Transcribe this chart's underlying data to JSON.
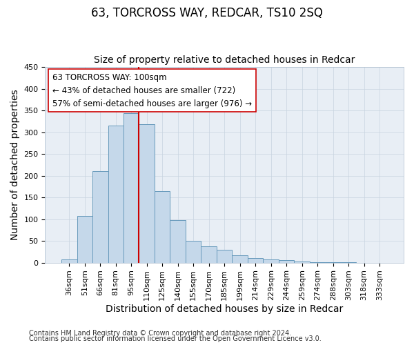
{
  "title": "63, TORCROSS WAY, REDCAR, TS10 2SQ",
  "subtitle": "Size of property relative to detached houses in Redcar",
  "xlabel": "Distribution of detached houses by size in Redcar",
  "ylabel": "Number of detached properties",
  "categories": [
    "36sqm",
    "51sqm",
    "66sqm",
    "81sqm",
    "95sqm",
    "110sqm",
    "125sqm",
    "140sqm",
    "155sqm",
    "170sqm",
    "185sqm",
    "199sqm",
    "214sqm",
    "229sqm",
    "244sqm",
    "259sqm",
    "274sqm",
    "288sqm",
    "303sqm",
    "318sqm",
    "333sqm"
  ],
  "values": [
    8,
    107,
    210,
    315,
    343,
    318,
    165,
    98,
    50,
    37,
    30,
    17,
    10,
    8,
    5,
    2,
    1,
    1,
    1,
    0,
    0
  ],
  "bar_color": "#c5d8ea",
  "bar_edge_color": "#6699bb",
  "vline_color": "#cc0000",
  "vline_x": 4.5,
  "annotation_line1": "63 TORCROSS WAY: 100sqm",
  "annotation_line2": "← 43% of detached houses are smaller (722)",
  "annotation_line3": "57% of semi-detached houses are larger (976) →",
  "annotation_box_facecolor": "#ffffff",
  "annotation_box_edgecolor": "#cc0000",
  "ylim": [
    0,
    450
  ],
  "yticks": [
    0,
    50,
    100,
    150,
    200,
    250,
    300,
    350,
    400,
    450
  ],
  "fig_bg_color": "#ffffff",
  "plot_bg_color": "#e8eef5",
  "grid_color": "#c8d4e0",
  "footer_text1": "Contains HM Land Registry data © Crown copyright and database right 2024.",
  "footer_text2": "Contains public sector information licensed under the Open Government Licence v3.0.",
  "title_fontsize": 12,
  "subtitle_fontsize": 10,
  "axis_label_fontsize": 10,
  "tick_fontsize": 8,
  "annotation_fontsize": 8.5,
  "footer_fontsize": 7
}
